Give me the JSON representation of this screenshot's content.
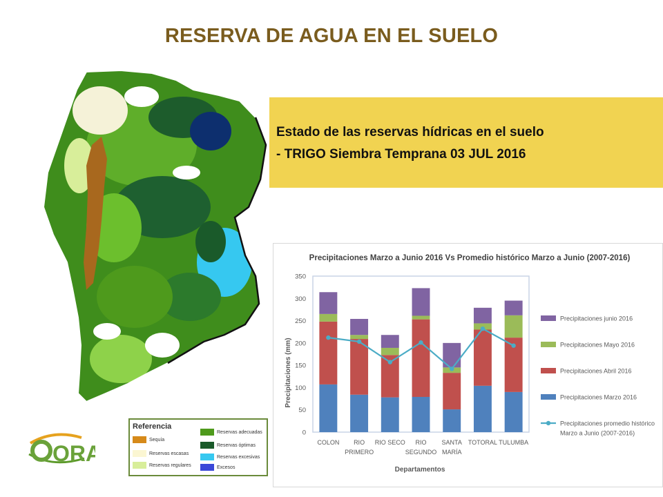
{
  "page": {
    "title": "RESERVA DE AGUA EN EL SUELO"
  },
  "banner": {
    "line1": "Estado de las reservas hídricas en el suelo",
    "line2": "- TRIGO Siembra Temprana 03 JUL 2016",
    "background": "#f1d351"
  },
  "map_legend": {
    "title": "Referencia",
    "items": [
      {
        "label": "Sequía",
        "color": "#d68a1a"
      },
      {
        "label": "Reservas escasas",
        "color": "#fbf6d2"
      },
      {
        "label": "Reservas regulares",
        "color": "#d8ee9a"
      },
      {
        "label": "Reservas adecuadas",
        "color": "#4e9a1c"
      },
      {
        "label": "Reservas óptimas",
        "color": "#1a5a2a"
      },
      {
        "label": "Reservas excesivas",
        "color": "#36c8f0"
      },
      {
        "label": "Excesos",
        "color": "#3a48d8"
      }
    ]
  },
  "logo": {
    "text": "ORA"
  },
  "chart_data": {
    "type": "bar",
    "stacked": true,
    "title": "Precipitaciones Marzo a Junio 2016 Vs Promedio histórico Marzo a Junio (2007-2016)",
    "xlabel": "Departamentos",
    "ylabel": "Precipitaciones (mm)",
    "ylim": [
      0,
      350
    ],
    "yticks": [
      0,
      50,
      100,
      150,
      200,
      250,
      300,
      350
    ],
    "grid": false,
    "legend_position": "right",
    "categories": [
      [
        "COLON"
      ],
      [
        "RIO",
        "PRIMERO"
      ],
      [
        "RIO SECO"
      ],
      [
        "RIO",
        "SEGUNDO"
      ],
      [
        "SANTA",
        "MARÍA"
      ],
      [
        "TOTORAL"
      ],
      [
        "TULUMBA"
      ]
    ],
    "series": [
      {
        "name": "Precipitaciones Marzo 2016",
        "type": "bar",
        "color": "#4f81bd",
        "values": [
          107,
          84,
          78,
          79,
          51,
          104,
          90
        ]
      },
      {
        "name": "Precipitaciones Abril 2016",
        "type": "bar",
        "color": "#c0504d",
        "values": [
          141,
          125,
          95,
          174,
          82,
          126,
          122
        ]
      },
      {
        "name": "Precipitaciones Mayo 2016",
        "type": "bar",
        "color": "#9bbb59",
        "values": [
          17,
          9,
          16,
          8,
          12,
          14,
          50
        ]
      },
      {
        "name": "Precipitaciones junio 2016",
        "type": "bar",
        "color": "#8064a2",
        "values": [
          49,
          36,
          29,
          62,
          55,
          35,
          33
        ]
      },
      {
        "name": "Precipitaciones promedio histórico Marzo a Junio (2007-2016)",
        "type": "line",
        "color": "#4bacc6",
        "values": [
          212,
          203,
          157,
          201,
          142,
          232,
          194
        ]
      }
    ],
    "legend_order": [
      3,
      2,
      1,
      0,
      4
    ],
    "legend_lines": [
      [
        "Precipitaciones junio 2016"
      ],
      [
        "Precipitaciones Mayo 2016"
      ],
      [
        "Precipitaciones Abril 2016"
      ],
      [
        "Precipitaciones Marzo 2016"
      ],
      [
        "Precipitaciones promedio histórico",
        "Marzo a Junio (2007-2016)"
      ]
    ]
  }
}
